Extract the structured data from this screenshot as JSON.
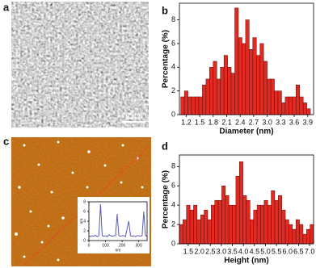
{
  "figure": {
    "panel_labels": [
      "a",
      "b",
      "c",
      "d"
    ],
    "scale_bar": "10nm"
  },
  "chart_data": [
    {
      "type": "histogram",
      "xlabel": "Diameter (nm)",
      "ylabel": "Percentage (%)",
      "color": "#e02a22",
      "bins": [
        1.08,
        1.16,
        1.24,
        1.32,
        1.4,
        1.48,
        1.56,
        1.64,
        1.72,
        1.8,
        1.88,
        1.96,
        2.04,
        2.12,
        2.2,
        2.28,
        2.36,
        2.44,
        2.52,
        2.6,
        2.68,
        2.76,
        2.84,
        2.92,
        3.0,
        3.08,
        3.16,
        3.24,
        3.32,
        3.4,
        3.48,
        3.56,
        3.64,
        3.72,
        3.8,
        3.88,
        3.96
      ],
      "values": [
        1.5,
        2,
        1.5,
        1.5,
        1.5,
        1.5,
        2.5,
        3,
        4,
        4.5,
        3,
        4,
        5,
        4,
        3.5,
        9,
        6.5,
        6,
        8,
        5.5,
        6.5,
        5,
        6,
        4.5,
        3,
        3,
        2,
        2,
        1,
        1.5,
        1.5,
        1.5,
        2.5,
        1.5,
        1,
        0.5
      ],
      "xlim": [
        1.05,
        4.03
      ],
      "ylim": [
        0,
        9.4
      ],
      "xticks": [
        1.2,
        1.5,
        1.8,
        2.1,
        2.4,
        2.7,
        {
          "value": 3,
          "label": "3.0"
        },
        3.3,
        3.6,
        3.9
      ],
      "yticks": [
        0,
        2,
        4,
        6,
        8
      ]
    },
    {
      "type": "histogram",
      "xlabel": "Height (nm)",
      "ylabel": "Percentage (%)",
      "color": "#e02a22",
      "bins": [
        1.1,
        1.26,
        1.42,
        1.58,
        1.74,
        1.9,
        2.06,
        2.22,
        2.38,
        2.54,
        2.7,
        2.86,
        3.02,
        3.18,
        3.34,
        3.5,
        3.66,
        3.82,
        3.98,
        4.14,
        4.3,
        4.46,
        4.62,
        4.78,
        4.94,
        5.1,
        5.26,
        5.42,
        5.58,
        5.74,
        5.9,
        6.06,
        6.22,
        6.38,
        6.54,
        6.7,
        6.86,
        7.02,
        7.18
      ],
      "values": [
        2,
        2.5,
        4,
        3.5,
        4,
        2.5,
        3,
        3.5,
        2.5,
        4,
        4.5,
        4.5,
        6,
        5,
        4,
        4,
        7,
        8.5,
        5,
        4.5,
        2.5,
        3.5,
        4,
        4,
        4.5,
        4,
        5.5,
        4.5,
        5,
        3.5,
        2.5,
        2,
        1.5,
        2.5,
        2,
        1,
        1.5,
        2
      ],
      "xlim": [
        1.1,
        7.18
      ],
      "ylim": [
        0,
        9.2
      ],
      "xticks": [
        1.5,
        {
          "value": 2,
          "label": "2.0"
        },
        2.5,
        {
          "value": 3,
          "label": "3.0"
        },
        3.5,
        {
          "value": 4,
          "label": "4.0"
        },
        4.5,
        {
          "value": 5,
          "label": "5.0"
        },
        5.5,
        {
          "value": 6,
          "label": "6.0"
        },
        6.5,
        {
          "value": 7,
          "label": "7.0"
        }
      ],
      "yticks": [
        0,
        2,
        4,
        6,
        8
      ]
    },
    {
      "type": "line",
      "xlabel": "nm",
      "ylabel": "nm",
      "color": "#5a5ab4",
      "x": [
        0,
        10,
        20,
        30,
        40,
        50,
        60,
        70,
        80,
        90,
        100,
        110,
        120,
        130,
        140,
        150,
        160,
        170,
        180,
        190,
        200,
        210,
        220,
        230,
        240,
        250,
        260,
        270,
        280,
        290,
        300,
        310,
        320,
        330,
        340,
        350
      ],
      "values": [
        1,
        0.8,
        1,
        0.9,
        1.1,
        0.8,
        1,
        7.5,
        1,
        0.9,
        1,
        0.8,
        1.2,
        1,
        0.9,
        1,
        1,
        5.5,
        1,
        0.9,
        1,
        1,
        0.8,
        2.5,
        4,
        1,
        0.9,
        1,
        0.8,
        1,
        1,
        0.9,
        1,
        6,
        1,
        0.9
      ],
      "xlim": [
        0,
        350
      ],
      "ylim": [
        0,
        8
      ],
      "xticks": [
        0,
        100,
        200,
        300
      ],
      "yticks": [
        0,
        2,
        4,
        6,
        8
      ]
    }
  ]
}
